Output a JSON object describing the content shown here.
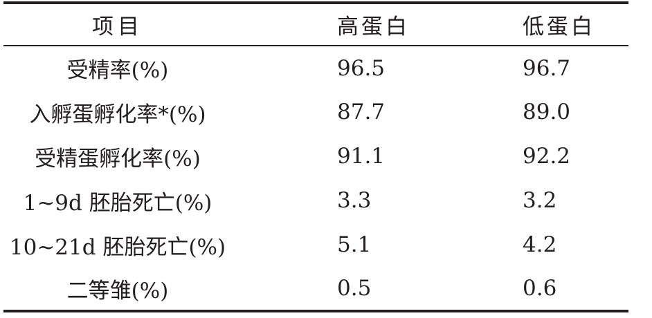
{
  "table": {
    "header": [
      "项目",
      "高蛋白",
      "低蛋白"
    ],
    "rows": [
      [
        "受精率(%)",
        "96.5",
        "96.7"
      ],
      [
        "入孵蛋孵化率*(%)",
        "87.7",
        "89.0"
      ],
      [
        "受精蛋孵化率(%)",
        "91.1",
        "92.2"
      ],
      [
        "1~9d 胚胎死亡(%)",
        "3.3",
        "3.2"
      ],
      [
        "10~21d 胚胎死亡(%)",
        "5.1",
        "4.2"
      ],
      [
        "二等雏(%)",
        "0.5",
        "0.6"
      ]
    ]
  }
}
